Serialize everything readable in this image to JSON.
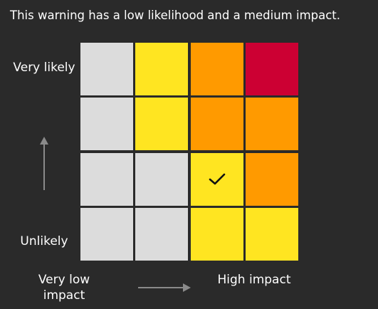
{
  "summary": "This warning has a low likelihood and a medium impact.",
  "y_axis": {
    "top_label": "Very likely",
    "bottom_label": "Unlikely"
  },
  "x_axis": {
    "left_label": "Very low impact",
    "right_label": "High impact"
  },
  "colors": {
    "background": "#2a2a2a",
    "grey": "#dcdcdc",
    "yellow": "#ffe521",
    "amber": "#ff9a00",
    "red": "#cc0033"
  },
  "matrix": {
    "rows": [
      [
        "grey",
        "yellow",
        "amber",
        "red"
      ],
      [
        "grey",
        "yellow",
        "amber",
        "amber"
      ],
      [
        "grey",
        "grey",
        "yellow",
        "amber"
      ],
      [
        "grey",
        "grey",
        "yellow",
        "yellow"
      ]
    ],
    "selected": {
      "likelihood": "low",
      "impact": "medium",
      "row": 2,
      "col": 2
    },
    "selected_icon": "check-icon"
  },
  "arrows": {
    "up": "arrow-up-icon",
    "right": "arrow-right-icon"
  }
}
